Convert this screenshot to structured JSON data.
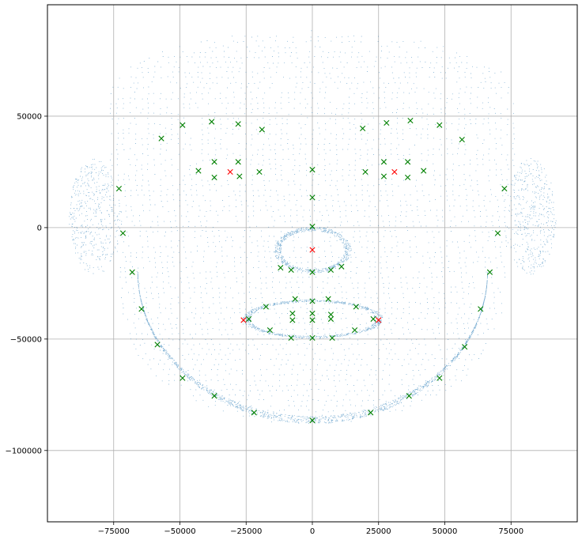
{
  "chart_data": {
    "type": "scatter",
    "title": "",
    "xlabel": "",
    "ylabel": "",
    "xlim": [
      -100000,
      100000
    ],
    "ylim": [
      -132000,
      100000
    ],
    "grid": true,
    "x_ticks": [
      {
        "value": -75000,
        "label": "−75000"
      },
      {
        "value": -50000,
        "label": "−50000"
      },
      {
        "value": -25000,
        "label": "−25000"
      },
      {
        "value": 0,
        "label": "0"
      },
      {
        "value": 25000,
        "label": "25000"
      },
      {
        "value": 50000,
        "label": "50000"
      },
      {
        "value": 75000,
        "label": "75000"
      }
    ],
    "y_ticks": [
      {
        "value": 50000,
        "label": "50000"
      },
      {
        "value": 0,
        "label": "0"
      },
      {
        "value": -50000,
        "label": "−50000"
      },
      {
        "value": -100000,
        "label": "−100000"
      }
    ],
    "colors": {
      "point_cloud": "#1f77b4",
      "landmarks_green": "#008000",
      "landmarks_red": "#ff0000",
      "grid": "#b0b0b0"
    },
    "series": [
      {
        "marker": "dot",
        "description_kind": "dense face point cloud",
        "shape": "face surface",
        "point_count_approx": 20000
      },
      {
        "marker": "x",
        "color": "green",
        "points": [
          [
            -57000,
            40000
          ],
          [
            -49000,
            46000
          ],
          [
            -38000,
            47500
          ],
          [
            -28000,
            46500
          ],
          [
            -19000,
            44000
          ],
          [
            19000,
            44500
          ],
          [
            28000,
            47000
          ],
          [
            37000,
            48000
          ],
          [
            48000,
            46000
          ],
          [
            56500,
            39500
          ],
          [
            -43000,
            25500
          ],
          [
            -37000,
            29500
          ],
          [
            -37000,
            22500
          ],
          [
            -28000,
            29500
          ],
          [
            -27500,
            23000
          ],
          [
            -20000,
            25000
          ],
          [
            20000,
            25000
          ],
          [
            27000,
            23000
          ],
          [
            27000,
            29500
          ],
          [
            36000,
            29500
          ],
          [
            36000,
            22500
          ],
          [
            42000,
            25500
          ],
          [
            0,
            26000
          ],
          [
            0,
            13500
          ],
          [
            0,
            500
          ],
          [
            0,
            -20000
          ],
          [
            -12000,
            -18000
          ],
          [
            -8000,
            -19000
          ],
          [
            7000,
            -19000
          ],
          [
            11000,
            -17500
          ],
          [
            -73000,
            17500
          ],
          [
            -71500,
            -2500
          ],
          [
            -68000,
            -20000
          ],
          [
            -64500,
            -36500
          ],
          [
            -58500,
            -52500
          ],
          [
            -49000,
            -67500
          ],
          [
            -37000,
            -75500
          ],
          [
            -22000,
            -83000
          ],
          [
            0,
            -86500
          ],
          [
            22000,
            -83000
          ],
          [
            36500,
            -75500
          ],
          [
            48000,
            -67500
          ],
          [
            57500,
            -53500
          ],
          [
            63500,
            -36500
          ],
          [
            67000,
            -20000
          ],
          [
            70000,
            -2500
          ],
          [
            72500,
            17500
          ],
          [
            -17500,
            -35500
          ],
          [
            -6500,
            -32000
          ],
          [
            0,
            -33000
          ],
          [
            6000,
            -32000
          ],
          [
            16500,
            -35500
          ],
          [
            -24000,
            -41000
          ],
          [
            -7500,
            -38500
          ],
          [
            0,
            -38500
          ],
          [
            7000,
            -39000
          ],
          [
            23000,
            -41000
          ],
          [
            -7500,
            -41500
          ],
          [
            0,
            -41500
          ],
          [
            7000,
            -41000
          ],
          [
            -16000,
            -46000
          ],
          [
            -8000,
            -49500
          ],
          [
            0,
            -49500
          ],
          [
            7500,
            -49500
          ],
          [
            16000,
            -46000
          ]
        ]
      },
      {
        "marker": "x",
        "color": "red",
        "points": [
          [
            -31000,
            25000
          ],
          [
            31000,
            25000
          ],
          [
            0,
            -10000
          ],
          [
            -26000,
            -41500
          ],
          [
            25000,
            -41500
          ]
        ]
      }
    ]
  }
}
